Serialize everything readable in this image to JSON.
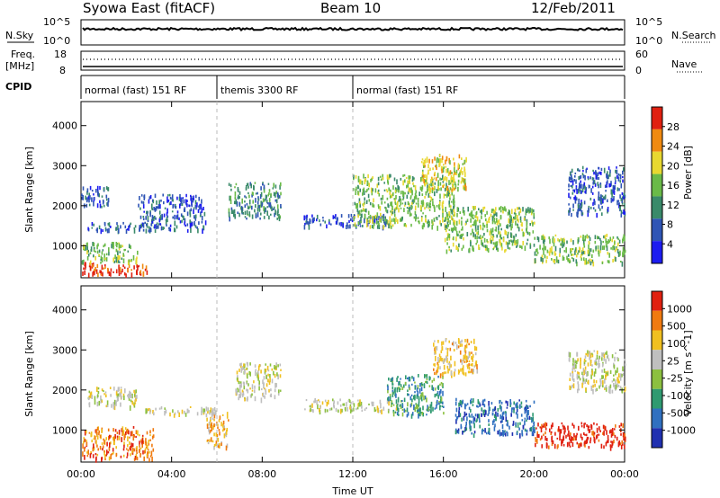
{
  "header": {
    "station": "Syowa East (fitACF)",
    "beam": "Beam 10",
    "date": "12/Feb/2011"
  },
  "strips": {
    "nsky_label": "N.Sky",
    "nsearch_label": "N.Search",
    "nsky_ticks": [
      "10^5",
      "10^0"
    ],
    "nsearch_ticks": [
      "10^5",
      "10^0"
    ],
    "freq_label": "Freq.",
    "freq_unit": "[MHz]",
    "freq_ticks": [
      "18",
      "8"
    ],
    "nave_label": "Nave",
    "nave_ticks": [
      "60",
      "0"
    ],
    "cpid_label": "CPID",
    "cpid_segments": [
      {
        "label": "normal (fast) 151 RF",
        "start": 0,
        "end": 6
      },
      {
        "label": "themis 3300 RF",
        "start": 6,
        "end": 12
      },
      {
        "label": "normal (fast) 151 RF",
        "start": 12,
        "end": 24
      }
    ]
  },
  "chart_data": [
    {
      "type": "heatmap",
      "panel": "power",
      "ylabel": "Slant Range [km]",
      "y_ticks": [
        "1000",
        "2000",
        "3000",
        "4000"
      ],
      "ylim": [
        200,
        4600
      ],
      "xlim": [
        0,
        24
      ],
      "colorbar_label": "Power [dB]",
      "colorbar_ticks": [
        "4",
        "8",
        "12",
        "16",
        "20",
        "24",
        "28"
      ],
      "colorbar_colors": [
        "#1c1cf0",
        "#2f55b5",
        "#3a8a6a",
        "#6aba48",
        "#e8d830",
        "#f08a10",
        "#e02010"
      ],
      "echo_regions": [
        {
          "t0": 0.0,
          "t1": 3.0,
          "r0": 300,
          "r1": 600,
          "level": 6
        },
        {
          "t0": 0.0,
          "t1": 2.5,
          "r0": 600,
          "r1": 1100,
          "level": 3
        },
        {
          "t0": 0.2,
          "t1": 2.8,
          "r0": 1400,
          "r1": 1600,
          "level": 1
        },
        {
          "t0": 0.0,
          "t1": 1.2,
          "r0": 2000,
          "r1": 2500,
          "level": 1
        },
        {
          "t0": 2.5,
          "t1": 5.5,
          "r0": 1400,
          "r1": 2300,
          "level": 1
        },
        {
          "t0": 6.5,
          "t1": 8.8,
          "r0": 1700,
          "r1": 2600,
          "level": 2
        },
        {
          "t0": 9.8,
          "t1": 13.5,
          "r0": 1500,
          "r1": 1800,
          "level": 1
        },
        {
          "t0": 12.0,
          "t1": 16.5,
          "r0": 1500,
          "r1": 2800,
          "level": 3
        },
        {
          "t0": 15.0,
          "t1": 17.0,
          "r0": 2400,
          "r1": 3300,
          "level": 4
        },
        {
          "t0": 16.0,
          "t1": 20.0,
          "r0": 900,
          "r1": 2000,
          "level": 3
        },
        {
          "t0": 20.0,
          "t1": 24.0,
          "r0": 600,
          "r1": 1300,
          "level": 3
        },
        {
          "t0": 21.5,
          "t1": 24.0,
          "r0": 1800,
          "r1": 3000,
          "level": 1
        }
      ]
    },
    {
      "type": "heatmap",
      "panel": "velocity",
      "ylabel": "Slant Range [km]",
      "y_ticks": [
        "1000",
        "2000",
        "3000",
        "4000"
      ],
      "ylim": [
        200,
        4600
      ],
      "xlim": [
        0,
        24
      ],
      "colorbar_label": "Velocity [m s^-1]",
      "colorbar_ticks": [
        "1000",
        "500",
        "100",
        "25",
        "-25",
        "-100",
        "-500",
        "-1000"
      ],
      "colorbar_colors": [
        "#2030b0",
        "#3070c0",
        "#2f9a70",
        "#8cc040",
        "#bfbfbf",
        "#f0c020",
        "#f07a10",
        "#e02010"
      ],
      "echo_regions": [
        {
          "t0": 0.0,
          "t1": 3.2,
          "r0": 300,
          "r1": 1100,
          "level": 6
        },
        {
          "t0": 0.3,
          "t1": 2.5,
          "r0": 1600,
          "r1": 2100,
          "level": 4
        },
        {
          "t0": 2.8,
          "t1": 6.0,
          "r0": 1400,
          "r1": 1600,
          "level": 4
        },
        {
          "t0": 5.5,
          "t1": 6.5,
          "r0": 600,
          "r1": 1500,
          "level": 5
        },
        {
          "t0": 6.8,
          "t1": 8.8,
          "r0": 1800,
          "r1": 2700,
          "level": 4
        },
        {
          "t0": 9.8,
          "t1": 14.0,
          "r0": 1500,
          "r1": 1800,
          "level": 4
        },
        {
          "t0": 13.5,
          "t1": 16.0,
          "r0": 1400,
          "r1": 2400,
          "level": 2
        },
        {
          "t0": 15.5,
          "t1": 17.5,
          "r0": 2400,
          "r1": 3300,
          "level": 5
        },
        {
          "t0": 16.5,
          "t1": 20.0,
          "r0": 900,
          "r1": 1800,
          "level": 1
        },
        {
          "t0": 20.0,
          "t1": 24.0,
          "r0": 600,
          "r1": 1200,
          "level": 7
        },
        {
          "t0": 21.5,
          "t1": 24.0,
          "r0": 2000,
          "r1": 3000,
          "level": 4
        }
      ]
    }
  ],
  "x_axis": {
    "ticks": [
      "00:00",
      "04:00",
      "08:00",
      "12:00",
      "16:00",
      "20:00",
      "00:00"
    ],
    "label": "Time UT"
  }
}
